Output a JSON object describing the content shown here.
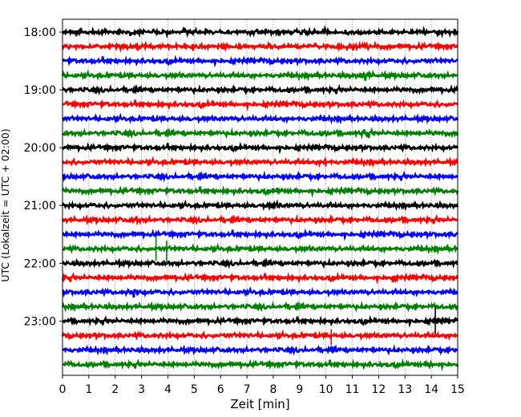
{
  "chart_data": {
    "type": "line",
    "subtype": "helicorder-seismogram",
    "xlabel": "Zeit  [min]",
    "ylabel": "UTC (Lokalzeit = UTC + 02:00)",
    "xlim": [
      0,
      15
    ],
    "x_ticks": [
      "0",
      "1",
      "2",
      "3",
      "4",
      "5",
      "6",
      "7",
      "8",
      "9",
      "10",
      "11",
      "12",
      "13",
      "14",
      "15"
    ],
    "y_ticks": [
      "18:00",
      "19:00",
      "20:00",
      "21:00",
      "22:00",
      "23:00"
    ],
    "grid": {
      "x": "dotted"
    },
    "trace_colors": [
      "#000000",
      "#ff0000",
      "#0000ff",
      "#008000"
    ],
    "lines_per_hour": 4,
    "minutes_per_line": 15,
    "start_time": "18:00",
    "line_count": 24
  }
}
